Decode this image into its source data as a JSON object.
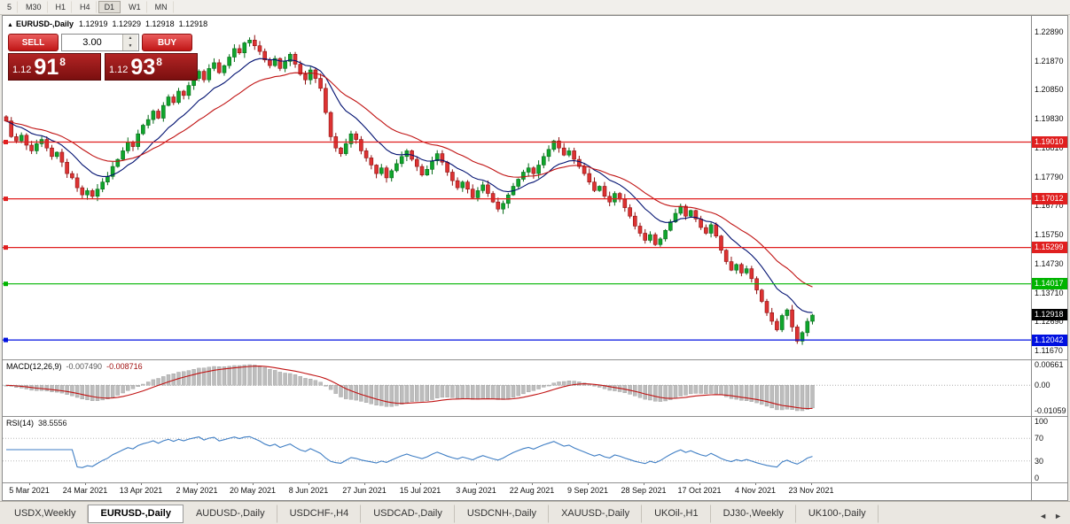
{
  "toolbar": {
    "periods": [
      "5",
      "M30",
      "H1",
      "H4",
      "D1",
      "W1",
      "MN"
    ],
    "active": "D1"
  },
  "chart": {
    "collapse_icon": "▲",
    "title": "EURUSD-,Daily",
    "ohlc": [
      "1.12919",
      "1.12929",
      "1.12918",
      "1.12918"
    ]
  },
  "trade_panel": {
    "sell_label": "SELL",
    "buy_label": "BUY",
    "volume": "3.00",
    "spin_up": "▲",
    "spin_down": "▼",
    "sell_price": {
      "prefix": "1.12",
      "digits": "91",
      "pip": "8"
    },
    "buy_price": {
      "prefix": "1.12",
      "digits": "93",
      "pip": "8"
    }
  },
  "tabs": {
    "items": [
      "USDX,Weekly",
      "EURUSD-,Daily",
      "AUDUSD-,Daily",
      "USDCHF-,H4",
      "USDCAD-,Daily",
      "USDCNH-,Daily",
      "XAUUSD-,Daily",
      "UKOil-,H1",
      "DJ30-,Weekly",
      "UK100-,Daily"
    ],
    "active_index": 1,
    "scroll_left": "◄",
    "scroll_right": "►"
  },
  "colors": {
    "bull": "#0fa52c",
    "bull_border": "#066a18",
    "bear": "#dd3232",
    "bear_border": "#8d1010",
    "level_red": "#e01f1f",
    "level_green": "#00b400",
    "level_blue": "#0010e0",
    "current_price_bg": "#000000"
  },
  "chart_data": {
    "type": "candlestick",
    "title": "EURUSD-,Daily",
    "symbol": "EURUSD-",
    "timeframe": "Daily",
    "ylim": [
      1.1139,
      1.2345
    ],
    "y_ticks": [
      "1.22890",
      "1.21870",
      "1.20850",
      "1.19830",
      "1.18810",
      "1.17790",
      "1.16770",
      "1.15750",
      "1.14730",
      "1.13710",
      "1.12690",
      "1.11670"
    ],
    "x_labels": [
      "5 Mar 2021",
      "24 Mar 2021",
      "13 Apr 2021",
      "2 May 2021",
      "20 May 2021",
      "8 Jun 2021",
      "27 Jun 2021",
      "15 Jul 2021",
      "3 Aug 2021",
      "22 Aug 2021",
      "9 Sep 2021",
      "28 Sep 2021",
      "17 Oct 2021",
      "4 Nov 2021",
      "23 Nov 2021"
    ],
    "first_open": 1.199,
    "closes": [
      1.1975,
      1.192,
      1.1905,
      1.1925,
      1.189,
      1.187,
      1.1895,
      1.191,
      1.188,
      1.185,
      1.1865,
      1.183,
      1.179,
      1.1775,
      1.174,
      1.1715,
      1.173,
      1.171,
      1.1735,
      1.176,
      1.178,
      1.1815,
      1.184,
      1.187,
      1.19,
      1.1885,
      1.193,
      1.196,
      1.198,
      1.201,
      1.1985,
      1.203,
      1.206,
      1.204,
      1.208,
      1.2065,
      1.21,
      1.2125,
      1.215,
      1.212,
      1.216,
      1.218,
      1.2145,
      1.217,
      1.22,
      1.223,
      1.2215,
      1.225,
      1.226,
      1.224,
      1.222,
      1.219,
      1.217,
      1.2195,
      1.216,
      1.2185,
      1.221,
      1.2175,
      1.214,
      1.212,
      1.2155,
      1.2125,
      1.209,
      1.2005,
      1.192,
      1.188,
      1.186,
      1.1895,
      1.193,
      1.191,
      1.187,
      1.1845,
      1.182,
      1.179,
      1.181,
      1.1775,
      1.18,
      1.1825,
      1.185,
      1.187,
      1.184,
      1.1815,
      1.1785,
      1.1805,
      1.1835,
      1.186,
      1.183,
      1.1795,
      1.1765,
      1.174,
      1.176,
      1.1735,
      1.1705,
      1.173,
      1.175,
      1.172,
      1.169,
      1.1665,
      1.1685,
      1.1715,
      1.1745,
      1.177,
      1.1795,
      1.181,
      1.179,
      1.182,
      1.185,
      1.1875,
      1.1905,
      1.188,
      1.1855,
      1.187,
      1.184,
      1.1815,
      1.179,
      1.176,
      1.173,
      1.1745,
      1.171,
      1.169,
      1.172,
      1.17,
      1.167,
      1.164,
      1.1605,
      1.158,
      1.1555,
      1.1575,
      1.154,
      1.156,
      1.159,
      1.162,
      1.165,
      1.1675,
      1.164,
      1.166,
      1.163,
      1.16,
      1.158,
      1.161,
      1.157,
      1.152,
      1.148,
      1.145,
      1.147,
      1.144,
      1.1455,
      1.142,
      1.138,
      1.134,
      1.13,
      1.127,
      1.124,
      1.129,
      1.131,
      1.125,
      1.12,
      1.123,
      1.127,
      1.12918
    ],
    "moving_averages": [
      {
        "type": "EMA",
        "period": 12,
        "color": "#001070"
      },
      {
        "type": "EMA",
        "period": 26,
        "color": "#c01212"
      }
    ],
    "levels": [
      {
        "price": 1.1901,
        "label": "1.19010",
        "color": "#e01f1f"
      },
      {
        "price": 1.17012,
        "label": "1.17012",
        "color": "#e01f1f"
      },
      {
        "price": 1.15299,
        "label": "1.15299",
        "color": "#e01f1f"
      },
      {
        "price": 1.14017,
        "label": "1.14017",
        "color": "#00b400"
      },
      {
        "price": 1.12042,
        "label": "1.12042",
        "color": "#0010e0"
      }
    ],
    "current_price": {
      "price": 1.12918,
      "label": "1.12918",
      "bg": "#000000"
    },
    "macd": {
      "label": "MACD(12,26,9)",
      "values_text": [
        "-0.007490",
        "-0.008716"
      ],
      "axis_labels": [
        "0.00661",
        "0.00",
        "-0.01059"
      ],
      "histogram_color": "#bdbdbd",
      "signal_color": "#c01212"
    },
    "rsi": {
      "label": "RSI(14)",
      "value_text": "38.5556",
      "axis_labels": [
        "100",
        "70",
        "30",
        "0"
      ],
      "levels": [
        70,
        30
      ],
      "line_color": "#3f7ec4"
    }
  }
}
